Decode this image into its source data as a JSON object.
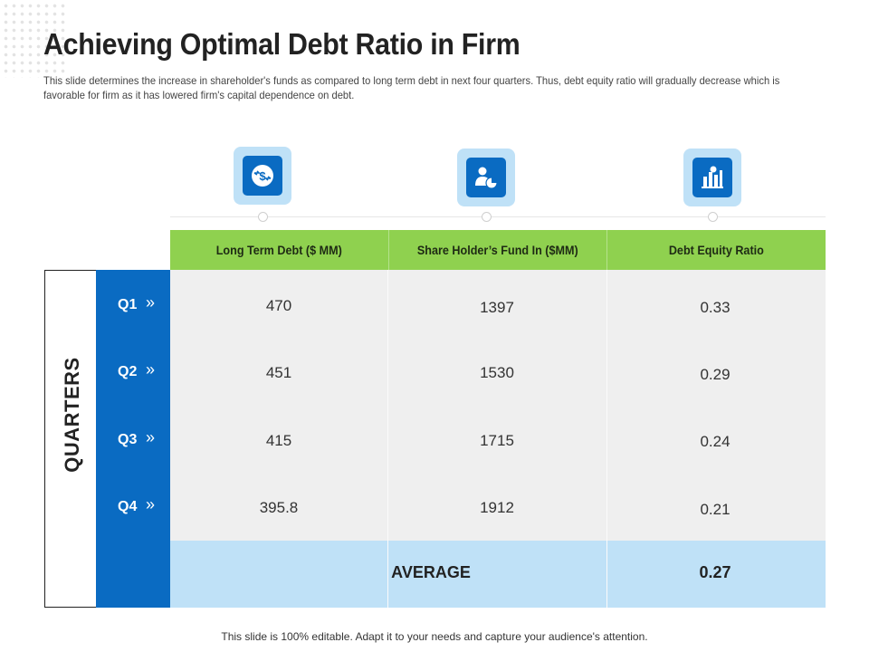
{
  "slide": {
    "title": "Achieving Optimal Debt Ratio in Firm",
    "subtitle": "This slide determines the increase in shareholder's funds as compared to long term debt in next four quarters. Thus, debt equity ratio will gradually decrease which is favorable for firm as it has lowered firm's capital dependence on debt.",
    "footer": "This slide is 100% editable. Adapt it to your needs and capture your audience's attention."
  },
  "icons": [
    "dollar-exchange-icon",
    "user-pie-chart-icon",
    "bar-chart-icon"
  ],
  "colors": {
    "header_green": "#8fd14f",
    "blue": "#0a6bc2",
    "light_blue": "#bfe1f7",
    "row_gray": "#efefef"
  },
  "table": {
    "row_group_label": "QUARTERS",
    "headers": [
      "Long Term Debt ($ MM)",
      "Share Holder’s Fund In ($MM)",
      "Debt Equity Ratio"
    ],
    "rows": [
      {
        "quarter": "Q1",
        "chevron": "»",
        "debt": "470",
        "fund": "1397",
        "ratio": "0.33"
      },
      {
        "quarter": "Q2",
        "chevron": "»",
        "debt": "451",
        "fund": "1530",
        "ratio": "0.29"
      },
      {
        "quarter": "Q3",
        "chevron": "»",
        "debt": "415",
        "fund": "1715",
        "ratio": "0.24"
      },
      {
        "quarter": "Q4",
        "chevron": "»",
        "debt": "395.8",
        "fund": "1912",
        "ratio": "0.21"
      }
    ],
    "average_label": "AVERAGE",
    "average_value": "0.27"
  }
}
